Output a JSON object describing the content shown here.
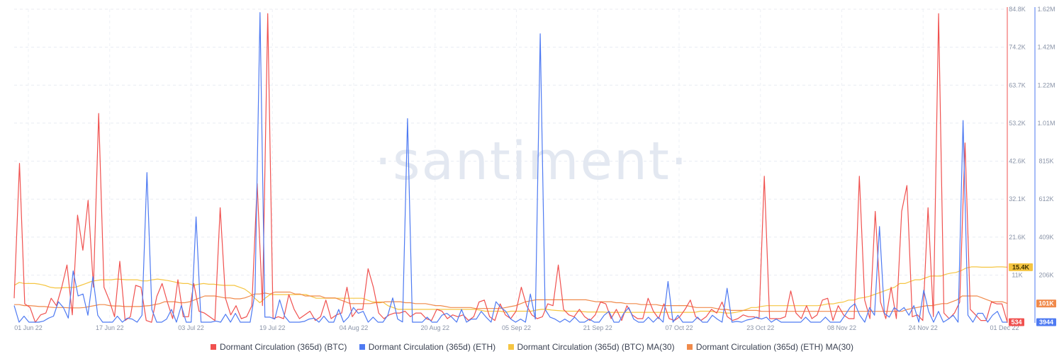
{
  "watermark": "·santiment·",
  "chart_data": {
    "type": "line",
    "x_ticks": [
      "01 Jun 22",
      "17 Jun 22",
      "03 Jul 22",
      "19 Jul 22",
      "04 Aug 22",
      "20 Aug 22",
      "05 Sep 22",
      "21 Sep 22",
      "07 Oct 22",
      "23 Oct 22",
      "08 Nov 22",
      "24 Nov 22",
      "01 Dec 22"
    ],
    "xlim": [
      "2022-06-01",
      "2022-12-01"
    ],
    "y_left_ticks": [
      "84.8K",
      "74.2K",
      "63.7K",
      "53.2K",
      "42.6K",
      "32.1K",
      "21.6K",
      "11K"
    ],
    "y_right_ticks": [
      "1.62M",
      "1.42M",
      "1.22M",
      "1.01M",
      "815K",
      "612K",
      "409K",
      "206K"
    ],
    "y_left_range": [
      534,
      84800
    ],
    "y_right_range": [
      3944,
      1620000
    ],
    "grid": true,
    "legend_position": "bottom",
    "series": [
      {
        "name": "Dormant Circulation (365d) (BTC)",
        "color": "#f0514f",
        "axis": "left",
        "values": [
          7000,
          43500,
          5500,
          4500,
          500,
          2500,
          3000,
          7000,
          5000,
          10000,
          16000,
          2500,
          29500,
          20000,
          33500,
          10000,
          57000,
          10000,
          6500,
          2000,
          17000,
          1000,
          2000,
          10500,
          10000,
          1000,
          500,
          7500,
          11000,
          6000,
          1500,
          12000,
          2000,
          2000,
          11000,
          3500,
          3000,
          2000,
          1000,
          31500,
          7000,
          2500,
          5000,
          1500,
          2000,
          5000,
          38000,
          5000,
          84000,
          1500,
          2000,
          1500,
          8000,
          4000,
          1500,
          2500,
          3500,
          1000,
          2000,
          6500,
          1500,
          2500,
          3000,
          10000,
          2000,
          4000,
          4000,
          15000,
          10000,
          3000,
          1500,
          2500,
          3000,
          3000,
          3500,
          2000,
          3000,
          3000,
          1500,
          1000,
          4000,
          3500,
          1500,
          2500,
          2000,
          2500,
          1000,
          2000,
          6000,
          6500,
          2000,
          1000,
          5500,
          2500,
          1500,
          3500,
          10000,
          5000,
          2500,
          1500,
          2000,
          5500,
          5000,
          16000,
          4000,
          2500,
          2000,
          4000,
          2000,
          1000,
          2500,
          6000,
          5500,
          1500,
          4000,
          1000,
          5000,
          2500,
          1500,
          1500,
          7000,
          3500,
          1500,
          5500,
          1500,
          1000,
          2000,
          4000,
          6500,
          2000,
          1000,
          2000,
          4000,
          3000,
          6000,
          2000,
          1000,
          1500,
          2500,
          2000,
          2000,
          1500,
          40000,
          1500,
          1500,
          1500,
          2000,
          9000,
          3000,
          1500,
          5000,
          1500,
          2500,
          6500,
          7000,
          1000,
          5000,
          2500,
          1500,
          1500,
          40000,
          6500,
          1500,
          30500,
          6000,
          1500,
          10000,
          1500,
          30500,
          37500,
          2000,
          2500,
          1000,
          31500,
          2000,
          84000,
          3000,
          1500,
          3000,
          6000,
          49000,
          4000,
          2500,
          1000,
          1000,
          6000,
          5500,
          5500,
          534
        ]
      },
      {
        "name": "Dormant Circulation (365d) (ETH)",
        "color": "#4e7af2",
        "axis": "right",
        "values": [
          90000,
          4000,
          35000,
          4000,
          4000,
          4000,
          10000,
          25000,
          35000,
          110000,
          80000,
          25000,
          270000,
          140000,
          150000,
          40000,
          240000,
          40000,
          4000,
          4000,
          4000,
          35000,
          4000,
          25000,
          20000,
          4000,
          40000,
          780000,
          70000,
          4000,
          4000,
          20000,
          70000,
          4000,
          90000,
          4000,
          4000,
          550000,
          4000,
          4000,
          4000,
          10000,
          4000,
          45000,
          4000,
          50000,
          4000,
          4000,
          4000,
          160000,
          1610000,
          30000,
          30000,
          20000,
          120000,
          35000,
          4000,
          4000,
          4000,
          8000,
          20000,
          25000,
          4000,
          35000,
          4000,
          4000,
          70000,
          4000,
          30000,
          80000,
          50000,
          60000,
          4000,
          30000,
          4000,
          4000,
          40000,
          130000,
          20000,
          5000,
          1060000,
          4000,
          4000,
          4000,
          30000,
          4000,
          4000,
          40000,
          50000,
          30000,
          4000,
          70000,
          4000,
          20000,
          20000,
          60000,
          30000,
          4000,
          110000,
          80000,
          60000,
          20000,
          4000,
          20000,
          4000,
          150000,
          20000,
          1500000,
          70000,
          30000,
          20000,
          4000,
          20000,
          4000,
          30000,
          4000,
          4000,
          20000,
          4000,
          4000,
          40000,
          60000,
          4000,
          4000,
          50000,
          80000,
          20000,
          4000,
          4000,
          30000,
          4000,
          30000,
          4000,
          215000,
          4000,
          40000,
          4000,
          4000,
          4000,
          30000,
          4000,
          4000,
          40000,
          20000,
          4000,
          180000,
          4000,
          8000,
          4000,
          15000,
          20000,
          30000,
          20000,
          30000,
          4000,
          20000,
          4000,
          4000,
          4000,
          4000,
          4000,
          30000,
          4000,
          4000,
          4000,
          30000,
          4000,
          4000,
          4000,
          40000,
          80000,
          100000,
          40000,
          4000,
          80000,
          40000,
          500000,
          50000,
          30000,
          80000,
          60000,
          80000,
          40000,
          90000,
          4000,
          170000,
          60000,
          4000,
          60000,
          4000,
          20000,
          40000,
          4000,
          1050000,
          40000,
          4000,
          50000,
          50000,
          4000,
          40000,
          60000,
          4000,
          3944
        ]
      },
      {
        "name": "Dormant Circulation (365d) (BTC) MA(30)",
        "color": "#f5c542",
        "axis": "left",
        "values": [
          10500,
          11300,
          11000,
          11000,
          11000,
          10800,
          10500,
          10000,
          9800,
          9800,
          9900,
          9900,
          10000,
          10500,
          11000,
          11500,
          11800,
          12000,
          12000,
          12000,
          12200,
          12100,
          12000,
          12000,
          12000,
          11700,
          11700,
          12000,
          12200,
          12000,
          11800,
          11500,
          11200,
          11000,
          11000,
          10500,
          10800,
          11000,
          10800,
          10800,
          10600,
          10500,
          10500,
          10500,
          10000,
          9500,
          8500,
          7000,
          5800,
          7000,
          8000,
          8000,
          8000,
          8000,
          8000,
          8000,
          8000,
          8000,
          7500,
          7000,
          7000,
          7000,
          7000,
          7000,
          7000,
          7000,
          7000,
          7000,
          7000,
          6500,
          6000,
          6000,
          6000,
          5000,
          4500,
          4000,
          4000,
          4000,
          4000,
          4000,
          4000,
          4000,
          4000,
          4000,
          4000,
          4000,
          4000,
          4000,
          4000,
          4000,
          4000,
          3800,
          3500,
          3500,
          3500,
          3500,
          3200,
          3500,
          3500,
          3500,
          3500,
          3500,
          3800,
          4000,
          4000,
          3800,
          3700,
          3600,
          3500,
          3500,
          3500,
          3400,
          3300,
          3300,
          3300,
          3300,
          3200,
          3200,
          3200,
          3200,
          3200,
          3200,
          3200,
          3200,
          3200,
          3200,
          3200,
          3200,
          3200,
          3200,
          3200,
          3200,
          3200,
          3200,
          3500,
          3500,
          3500,
          3300,
          3200,
          3000,
          3000,
          3200,
          3500,
          4000,
          4500,
          4500,
          4800,
          5000,
          5000,
          5000,
          5000,
          5000,
          5000,
          5000,
          5000,
          5000,
          5000,
          5000,
          5200,
          5500,
          5500,
          5800,
          6000,
          6500,
          6500,
          7000,
          7200,
          7500,
          8000,
          8500,
          9000,
          9500,
          10000,
          11000,
          11000,
          11500,
          12000,
          12000,
          12500,
          13000,
          13000,
          13000,
          13500,
          13800,
          14000,
          14500,
          15200,
          15500,
          15500,
          15400,
          15400,
          15400,
          15500,
          15500,
          15400
        ]
      },
      {
        "name": "Dormant Circulation (365d) (ETH) MA(30)",
        "color": "#f08a4b",
        "axis": "right",
        "values": [
          95000,
          95000,
          90000,
          90000,
          88000,
          85000,
          85000,
          82000,
          80000,
          80000,
          80000,
          78000,
          78000,
          78000,
          80000,
          85000,
          90000,
          95000,
          95000,
          90000,
          88000,
          88000,
          85000,
          85000,
          85000,
          85000,
          88000,
          90000,
          95000,
          100000,
          110000,
          110000,
          110000,
          105000,
          105000,
          110000,
          120000,
          130000,
          140000,
          140000,
          140000,
          135000,
          130000,
          130000,
          125000,
          125000,
          130000,
          140000,
          150000,
          150000,
          155000,
          150000,
          160000,
          160000,
          160000,
          160000,
          150000,
          150000,
          140000,
          140000,
          140000,
          140000,
          130000,
          130000,
          130000,
          120000,
          110000,
          100000,
          100000,
          100000,
          100000,
          100000,
          105000,
          105000,
          110000,
          110000,
          110000,
          110000,
          105000,
          105000,
          100000,
          100000,
          100000,
          95000,
          90000,
          90000,
          85000,
          80000,
          80000,
          80000,
          80000,
          80000,
          75000,
          75000,
          75000,
          75000,
          75000,
          75000,
          80000,
          85000,
          90000,
          100000,
          110000,
          115000,
          120000,
          120000,
          120000,
          120000,
          120000,
          120000,
          120000,
          120000,
          120000,
          120000,
          120000,
          115000,
          110000,
          110000,
          110000,
          110000,
          105000,
          105000,
          100000,
          100000,
          100000,
          95000,
          95000,
          95000,
          95000,
          90000,
          90000,
          90000,
          90000,
          90000,
          90000,
          85000,
          80000,
          80000,
          80000,
          80000,
          75000,
          70000,
          70000,
          65000,
          65000,
          65000,
          65000,
          65000,
          65000,
          60000,
          60000,
          60000,
          60000,
          60000,
          60000,
          60000,
          60000,
          60000,
          60000,
          60000,
          60000,
          60000,
          60000,
          60000,
          60000,
          60000,
          60000,
          60000,
          60000,
          60000,
          60000,
          60000,
          60000,
          60000,
          60000,
          60000,
          60000,
          60000,
          70000,
          75000,
          80000,
          85000,
          90000,
          90000,
          95000,
          100000,
          100000,
          110000,
          120000,
          140000,
          140000,
          140000,
          140000,
          130000,
          120000,
          110000,
          110000,
          110000,
          101000
        ]
      }
    ],
    "badges": [
      {
        "text": "15.4K",
        "series": 2,
        "value": 15400
      },
      {
        "text": "101K",
        "series": 3,
        "value": 101000
      },
      {
        "text": "534",
        "series": 0,
        "value": 534
      },
      {
        "text": "3944",
        "series": 1,
        "value": 3944
      }
    ]
  }
}
